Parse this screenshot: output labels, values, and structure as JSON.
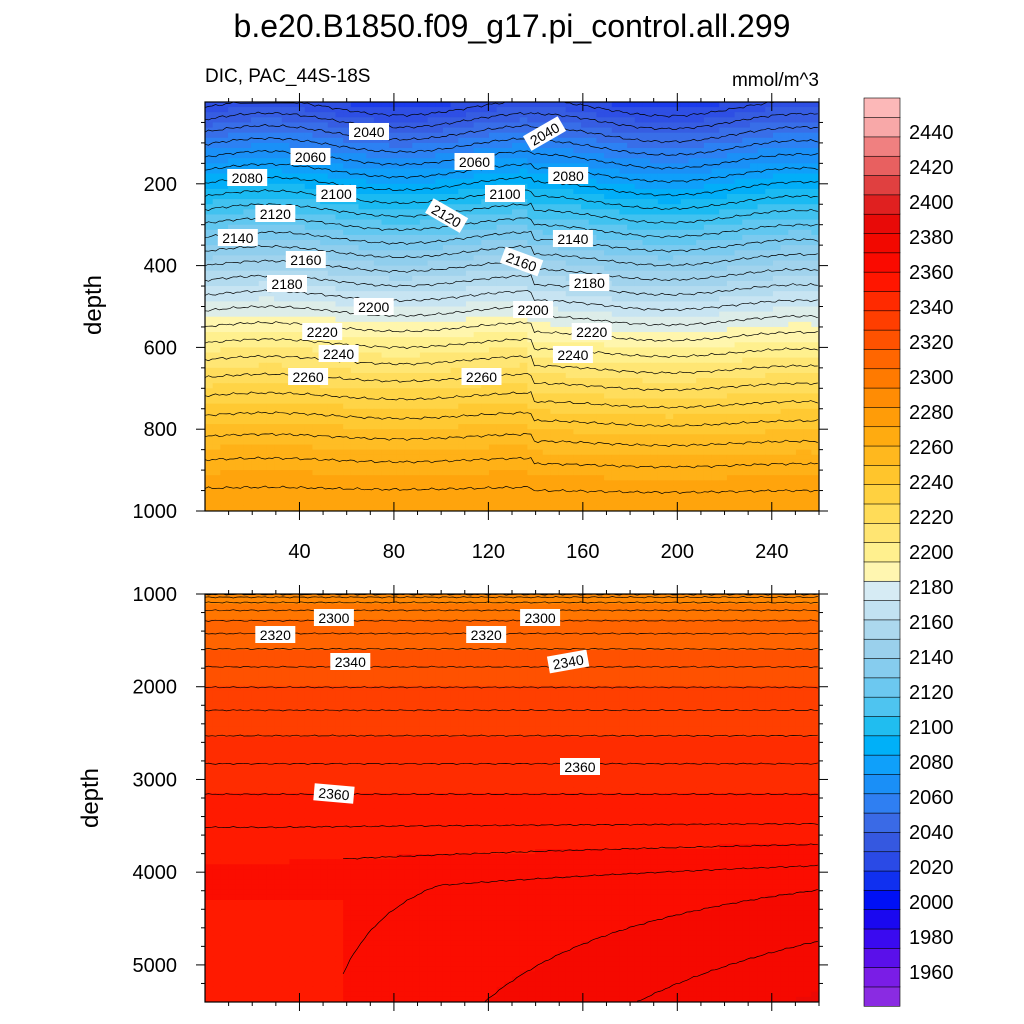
{
  "chart_data": {
    "type": "contour",
    "title": "b.e20.B1850.f09_g17.pi_control.all.299",
    "left_subtitle": "DIC, PAC_44S-18S",
    "right_subtitle": "mmol/m^3",
    "ylabel": "depth",
    "x_ticks": [
      "40",
      "80",
      "120",
      "160",
      "200",
      "240"
    ],
    "top_panel": {
      "ylim": [
        1000,
        0
      ],
      "y_ticks": [
        "200",
        "400",
        "600",
        "800",
        "1000"
      ],
      "contour_labels": [
        "2040",
        "2040",
        "2060",
        "2060",
        "2080",
        "2080",
        "2100",
        "2100",
        "2120",
        "2120",
        "2140",
        "2140",
        "2160",
        "2160",
        "2180",
        "2180",
        "2200",
        "2200",
        "2220",
        "2220",
        "2240",
        "2240",
        "2260",
        "2260"
      ]
    },
    "bottom_panel": {
      "ylim": [
        5400,
        1000
      ],
      "y_ticks": [
        "1000",
        "2000",
        "3000",
        "4000",
        "5000"
      ],
      "contour_labels": [
        "2300",
        "2300",
        "2320",
        "2320",
        "2340",
        "2340",
        "2360",
        "2360"
      ]
    },
    "colorbar": {
      "levels": [
        1960,
        1980,
        2000,
        2020,
        2040,
        2060,
        2080,
        2100,
        2120,
        2140,
        2160,
        2180,
        2200,
        2220,
        2240,
        2260,
        2280,
        2300,
        2320,
        2340,
        2360,
        2380,
        2400,
        2420,
        2440
      ],
      "labels": [
        "1960",
        "1980",
        "2000",
        "2020",
        "2040",
        "2060",
        "2080",
        "2100",
        "2120",
        "2140",
        "2160",
        "2180",
        "2200",
        "2220",
        "2240",
        "2260",
        "2280",
        "2300",
        "2320",
        "2340",
        "2360",
        "2380",
        "2400",
        "2420",
        "2440"
      ],
      "colors": [
        "#8a2be2",
        "#7a1de6",
        "#5a10ea",
        "#3a0af0",
        "#1a08f0",
        "#0010f5",
        "#1030f0",
        "#2a4ae6",
        "#3558e0",
        "#3a6ae6",
        "#2f7ff2",
        "#1a8ff7",
        "#0fa0fa",
        "#00b0f8",
        "#20bdf0",
        "#4ec4f0",
        "#6cc8f0",
        "#86ccee",
        "#9ad0ec",
        "#acd8ee",
        "#c2e2f2",
        "#d6ebf4",
        "#fff6b0",
        "#fff08e",
        "#ffe572",
        "#ffdc58",
        "#ffd140",
        "#ffc52c",
        "#ffb81e",
        "#ffab10",
        "#ff9c08",
        "#ff8c04",
        "#ff7a00",
        "#ff6600",
        "#ff5200",
        "#ff3e00",
        "#ff2a00",
        "#ff1600",
        "#fa0a00",
        "#f20800",
        "#e80a08",
        "#e02020",
        "#e04040",
        "#e86060",
        "#f08080",
        "#f8a8a8",
        "#fcb8b8"
      ]
    }
  }
}
